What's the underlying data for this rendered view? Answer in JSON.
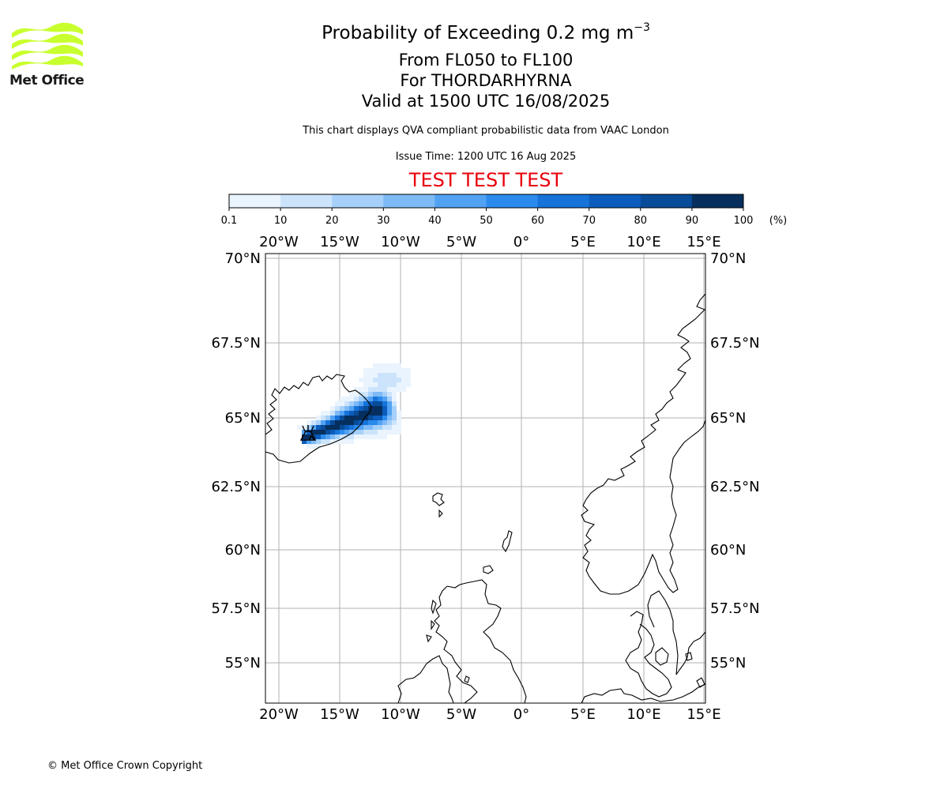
{
  "logo": {
    "text": "Met Office",
    "accent_color": "#c8ff2e"
  },
  "header": {
    "title_main": "Probability of Exceeding 0.2 mg m",
    "title_exponent": "−3",
    "level_range": "From FL050 to FL100",
    "volcano_line": "For THORDARHYRNA",
    "valid_time": "Valid at 1500 UTC 16/08/2025",
    "disclaimer": "This chart displays QVA compliant probabilistic data from VAAC London",
    "issue_time": "Issue Time: 1200 UTC 16 Aug 2025",
    "test_banner": "TEST TEST TEST"
  },
  "colorbar": {
    "ticks": [
      "0.1",
      "10",
      "20",
      "30",
      "40",
      "50",
      "60",
      "70",
      "80",
      "90",
      "100"
    ],
    "unit": "(%)",
    "colors": [
      "#eaf4fe",
      "#cce4fb",
      "#a6d0f9",
      "#7ebaf6",
      "#52a2f3",
      "#2b8bed",
      "#1573d9",
      "#0b5cbc",
      "#084b98",
      "#062f5e"
    ]
  },
  "map": {
    "lon_ticks": [
      "20°W",
      "15°W",
      "10°W",
      "5°W",
      "0°",
      "5°E",
      "10°E",
      "15°E"
    ],
    "lat_ticks": [
      "70°N",
      "67.5°N",
      "65°N",
      "62.5°N",
      "60°N",
      "57.5°N",
      "55°N"
    ],
    "volcano_symbol": "volcano-icon"
  },
  "footer": {
    "copyright": "© Met Office Crown Copyright"
  }
}
